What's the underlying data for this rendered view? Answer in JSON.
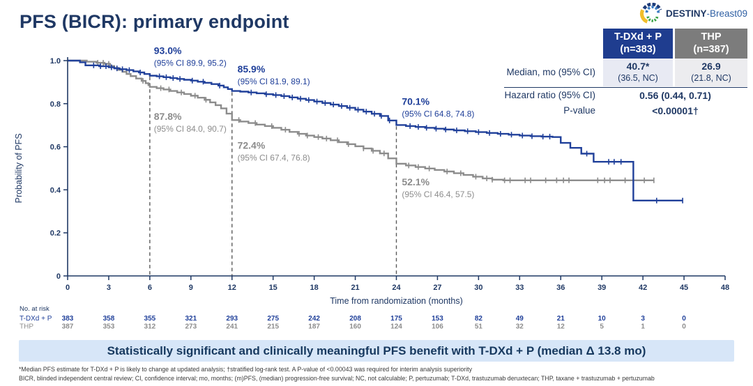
{
  "slide": {
    "title": "PFS (BICR): primary endpoint",
    "logo": {
      "study_bold": "DESTINY",
      "study_rest": "-Breast09"
    },
    "banner": "Statistically significant and clinically meaningful PFS benefit with T-DXd + P (median Δ 13.8 mo)",
    "footnotes": {
      "line1": "*Median PFS estimate for T-DXd + P is likely to change at updated analysis; †stratified log-rank test. A P-value of <0.00043 was required for interim analysis superiority",
      "line2": "BICR, blinded independent central review; CI, confidence interval; mo, months; (m)PFS, (median) progression-free survival; NC, not calculable; P, pertuzumab; T-DXd, trastuzumab deruxtecan; THP, taxane + trastuzumab + pertuzumab"
    }
  },
  "results_table": {
    "columns": [
      {
        "name": "T-DXd + P",
        "n": "(n=383)",
        "bg": "#1F3D8F"
      },
      {
        "name": "THP",
        "n": "(n=387)",
        "bg": "#7C7C7C"
      }
    ],
    "median": {
      "label": "Median, mo (95% CI)",
      "tdxd_value": "40.7*",
      "tdxd_ci": "(36.5, NC)",
      "thp_value": "26.9",
      "thp_ci": "(21.8, NC)"
    },
    "hazard": {
      "label": "Hazard ratio (95% CI)",
      "value": "0.56 (0.44, 0.71)"
    },
    "pvalue": {
      "label": "P-value",
      "value": "<0.00001†"
    }
  },
  "chart_data": {
    "type": "line",
    "subtype": "kaplan-meier-step",
    "xlabel": "Time from randomization (months)",
    "ylabel": "Probability of PFS",
    "xlim": [
      0,
      48
    ],
    "ylim": [
      0,
      1.0
    ],
    "xticks": [
      0,
      3,
      6,
      9,
      12,
      15,
      18,
      21,
      24,
      27,
      30,
      33,
      36,
      39,
      42,
      45,
      48
    ],
    "ytick_labels": [
      "0",
      "0.2",
      "0.4",
      "0.6",
      "0.8",
      "1.0"
    ],
    "axis_color": "#1F3864",
    "series": [
      {
        "name": "T-DXd + P",
        "color": "#20409A",
        "points": [
          [
            0,
            1.0
          ],
          [
            0.9,
            0.992
          ],
          [
            1.3,
            0.978
          ],
          [
            2.3,
            0.974
          ],
          [
            3.0,
            0.969
          ],
          [
            3.4,
            0.964
          ],
          [
            3.8,
            0.96
          ],
          [
            4.3,
            0.956
          ],
          [
            4.8,
            0.95
          ],
          [
            5.2,
            0.945
          ],
          [
            5.6,
            0.938
          ],
          [
            6.0,
            0.93
          ],
          [
            6.5,
            0.927
          ],
          [
            7.0,
            0.923
          ],
          [
            7.5,
            0.919
          ],
          [
            8.0,
            0.915
          ],
          [
            8.5,
            0.911
          ],
          [
            9.0,
            0.907
          ],
          [
            9.5,
            0.902
          ],
          [
            10.0,
            0.897
          ],
          [
            10.5,
            0.891
          ],
          [
            11.0,
            0.884
          ],
          [
            11.4,
            0.876
          ],
          [
            11.7,
            0.868
          ],
          [
            12.0,
            0.859
          ],
          [
            12.6,
            0.856
          ],
          [
            13.2,
            0.852
          ],
          [
            13.8,
            0.848
          ],
          [
            14.4,
            0.844
          ],
          [
            15.0,
            0.84
          ],
          [
            15.6,
            0.835
          ],
          [
            16.2,
            0.829
          ],
          [
            16.8,
            0.823
          ],
          [
            17.4,
            0.817
          ],
          [
            18.0,
            0.81
          ],
          [
            18.6,
            0.803
          ],
          [
            19.2,
            0.796
          ],
          [
            19.8,
            0.789
          ],
          [
            20.4,
            0.781
          ],
          [
            21.0,
            0.772
          ],
          [
            21.6,
            0.763
          ],
          [
            22.2,
            0.753
          ],
          [
            22.8,
            0.743
          ],
          [
            23.4,
            0.722
          ],
          [
            24.0,
            0.701
          ],
          [
            24.7,
            0.696
          ],
          [
            25.4,
            0.692
          ],
          [
            26.1,
            0.688
          ],
          [
            26.8,
            0.684
          ],
          [
            27.5,
            0.68
          ],
          [
            28.2,
            0.676
          ],
          [
            29.0,
            0.672
          ],
          [
            29.8,
            0.668
          ],
          [
            30.6,
            0.664
          ],
          [
            31.4,
            0.66
          ],
          [
            32.2,
            0.656
          ],
          [
            33.0,
            0.652
          ],
          [
            33.8,
            0.649
          ],
          [
            34.6,
            0.647
          ],
          [
            35.4,
            0.645
          ],
          [
            36.0,
            0.618
          ],
          [
            36.7,
            0.595
          ],
          [
            37.5,
            0.568
          ],
          [
            38.4,
            0.53
          ],
          [
            41.3,
            0.35
          ],
          [
            44.9,
            0.35
          ]
        ],
        "censors": [
          1.9,
          2.4,
          2.8,
          3.2,
          3.6,
          4.0,
          4.5,
          5.3,
          6.7,
          7.2,
          7.7,
          8.2,
          9.1,
          9.9,
          11.1,
          13.4,
          14.5,
          15.2,
          15.8,
          16.4,
          17.0,
          17.6,
          18.2,
          18.8,
          19.4,
          20.0,
          20.6,
          21.2,
          21.8,
          22.4,
          22.9,
          23.5,
          25.0,
          25.6,
          26.2,
          26.9,
          27.6,
          28.4,
          29.2,
          30.0,
          30.8,
          31.6,
          32.4,
          33.2,
          33.9,
          34.7,
          35.2,
          37.9,
          39.5,
          39.9,
          40.4,
          43.0,
          44.9
        ]
      },
      {
        "name": "THP",
        "color": "#8C8C8C",
        "points": [
          [
            0,
            1.0
          ],
          [
            1.4,
            0.995
          ],
          [
            2.1,
            0.99
          ],
          [
            2.7,
            0.985
          ],
          [
            3.1,
            0.975
          ],
          [
            3.4,
            0.966
          ],
          [
            3.7,
            0.957
          ],
          [
            4.0,
            0.948
          ],
          [
            4.3,
            0.938
          ],
          [
            4.6,
            0.928
          ],
          [
            5.0,
            0.917
          ],
          [
            5.4,
            0.906
          ],
          [
            5.7,
            0.895
          ],
          [
            5.9,
            0.886
          ],
          [
            6.0,
            0.878
          ],
          [
            6.5,
            0.872
          ],
          [
            7.0,
            0.866
          ],
          [
            7.5,
            0.859
          ],
          [
            8.0,
            0.852
          ],
          [
            8.5,
            0.845
          ],
          [
            9.0,
            0.837
          ],
          [
            9.5,
            0.828
          ],
          [
            10.0,
            0.818
          ],
          [
            10.4,
            0.806
          ],
          [
            10.8,
            0.793
          ],
          [
            11.2,
            0.778
          ],
          [
            11.6,
            0.754
          ],
          [
            12.0,
            0.724
          ],
          [
            12.6,
            0.717
          ],
          [
            13.2,
            0.71
          ],
          [
            13.8,
            0.703
          ],
          [
            14.4,
            0.696
          ],
          [
            15.0,
            0.688
          ],
          [
            15.6,
            0.679
          ],
          [
            16.2,
            0.669
          ],
          [
            16.8,
            0.66
          ],
          [
            17.4,
            0.652
          ],
          [
            18.0,
            0.645
          ],
          [
            18.6,
            0.638
          ],
          [
            19.2,
            0.63
          ],
          [
            19.8,
            0.621
          ],
          [
            20.4,
            0.612
          ],
          [
            21.0,
            0.602
          ],
          [
            21.6,
            0.592
          ],
          [
            22.2,
            0.581
          ],
          [
            22.8,
            0.569
          ],
          [
            23.4,
            0.546
          ],
          [
            24.0,
            0.521
          ],
          [
            24.7,
            0.513
          ],
          [
            25.4,
            0.506
          ],
          [
            26.1,
            0.499
          ],
          [
            26.8,
            0.492
          ],
          [
            27.5,
            0.485
          ],
          [
            28.2,
            0.477
          ],
          [
            28.9,
            0.469
          ],
          [
            29.6,
            0.461
          ],
          [
            30.3,
            0.453
          ],
          [
            31.0,
            0.447
          ],
          [
            31.8,
            0.444
          ],
          [
            42.8,
            0.444
          ]
        ],
        "censors": [
          2.2,
          2.6,
          3.0,
          5.5,
          6.8,
          7.4,
          8.3,
          9.3,
          10.1,
          12.5,
          13.7,
          14.9,
          15.9,
          16.9,
          17.5,
          18.3,
          18.9,
          19.7,
          20.5,
          21.6,
          22.3,
          23.1,
          24.9,
          25.6,
          26.4,
          27.7,
          28.7,
          29.8,
          30.6,
          31.0,
          31.9,
          32.3,
          33.4,
          33.8,
          34.9,
          35.7,
          36.2,
          36.6,
          38.7,
          39.2,
          39.6,
          40.7,
          42.1,
          42.8
        ]
      }
    ],
    "milestone_lines": [
      {
        "month": 6,
        "top_prob": 0.925
      },
      {
        "month": 12,
        "top_prob": 0.853
      },
      {
        "month": 24,
        "top_prob": 0.695
      }
    ],
    "annotations": [
      {
        "pct": "93.0%",
        "ci": "(95% CI 89.9, 95.2)",
        "month": 6.3,
        "pct_prob": 1.03,
        "ci_prob": 0.975,
        "color": "#20409A"
      },
      {
        "pct": "85.9%",
        "ci": "(95% CI 81.9, 89.1)",
        "month": 12.4,
        "pct_prob": 0.945,
        "ci_prob": 0.89,
        "color": "#20409A"
      },
      {
        "pct": "70.1%",
        "ci": "(95% CI 64.8, 74.8)",
        "month": 24.4,
        "pct_prob": 0.795,
        "ci_prob": 0.74,
        "color": "#20409A"
      },
      {
        "pct": "87.8%",
        "ci": "(95% CI 84.0, 90.7)",
        "month": 6.3,
        "pct_prob": 0.725,
        "ci_prob": 0.67,
        "color": "#8C8C8C"
      },
      {
        "pct": "72.4%",
        "ci": "(95% CI 67.4, 76.8)",
        "month": 12.4,
        "pct_prob": 0.59,
        "ci_prob": 0.535,
        "color": "#8C8C8C"
      },
      {
        "pct": "52.1%",
        "ci": "(95% CI 46.4, 57.5)",
        "month": 24.4,
        "pct_prob": 0.42,
        "ci_prob": 0.365,
        "color": "#8C8C8C"
      }
    ],
    "at_risk": {
      "header": "No. at risk",
      "months": [
        0,
        3,
        6,
        9,
        12,
        15,
        18,
        21,
        24,
        27,
        30,
        33,
        36,
        39,
        42,
        45
      ],
      "rows": [
        {
          "label": "T-DXd + P",
          "color": "#20409A",
          "values": [
            383,
            358,
            355,
            321,
            293,
            275,
            242,
            208,
            175,
            153,
            82,
            49,
            21,
            10,
            3,
            0
          ]
        },
        {
          "label": "THP",
          "color": "#8C8C8C",
          "values": [
            387,
            353,
            312,
            273,
            241,
            215,
            187,
            160,
            124,
            106,
            51,
            32,
            12,
            5,
            1,
            0
          ]
        }
      ]
    }
  }
}
